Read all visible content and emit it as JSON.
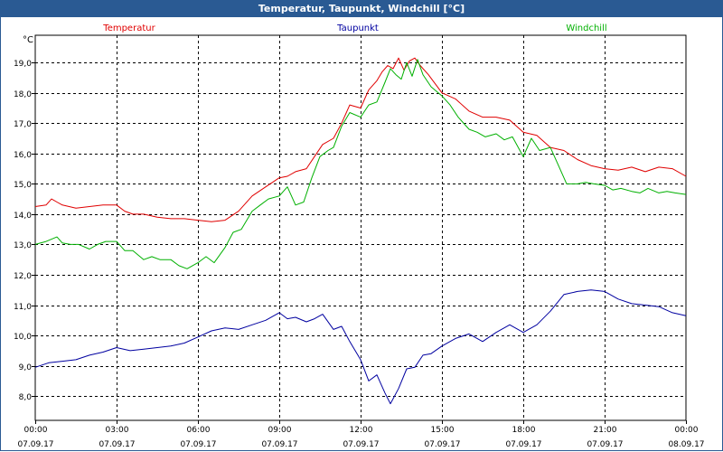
{
  "window": {
    "title": "Temperatur, Taupunkt, Windchill [°C]"
  },
  "chart_data": {
    "type": "line",
    "title": "Temperatur, Taupunkt, Windchill [°C]",
    "ylabel": "°C",
    "ylim": [
      7.2,
      19.9
    ],
    "xlim": [
      0,
      24
    ],
    "yticks": [
      8.0,
      9.0,
      10.0,
      11.0,
      12.0,
      13.0,
      14.0,
      15.0,
      16.0,
      17.0,
      18.0,
      19.0
    ],
    "ytick_labels": [
      "8,0",
      "9,0",
      "10,0",
      "11,0",
      "12,0",
      "13,0",
      "14,0",
      "15,0",
      "16,0",
      "17,0",
      "18,0",
      "19,0"
    ],
    "xticks": [
      0,
      3,
      6,
      9,
      12,
      15,
      18,
      21,
      24
    ],
    "xtick_times": [
      "00:00",
      "03:00",
      "06:00",
      "09:00",
      "12:00",
      "15:00",
      "18:00",
      "21:00",
      "00:00"
    ],
    "xtick_dates": [
      "07.09.17",
      "07.09.17",
      "07.09.17",
      "07.09.17",
      "07.09.17",
      "07.09.17",
      "07.09.17",
      "07.09.17",
      "08.09.17"
    ],
    "grid": true,
    "series": [
      {
        "name": "Temperatur",
        "color": "#e00000",
        "x": [
          0,
          0.4,
          0.6,
          0.8,
          1,
          1.5,
          2,
          2.5,
          3,
          3.3,
          3.6,
          4,
          4.5,
          5,
          5.5,
          6,
          6.5,
          7,
          7.5,
          8,
          8.5,
          9,
          9.3,
          9.6,
          10,
          10.3,
          10.6,
          11,
          11.3,
          11.6,
          12,
          12.3,
          12.6,
          12.8,
          13,
          13.2,
          13.4,
          13.6,
          13.8,
          14,
          14.2,
          14.5,
          15,
          15.5,
          16,
          16.5,
          17,
          17.5,
          18,
          18.5,
          19,
          19.5,
          20,
          20.5,
          21,
          21.5,
          22,
          22.5,
          23,
          23.5,
          24
        ],
        "values": [
          14.25,
          14.3,
          14.5,
          14.4,
          14.3,
          14.2,
          14.25,
          14.3,
          14.3,
          14.1,
          14.0,
          14.0,
          13.9,
          13.85,
          13.85,
          13.8,
          13.75,
          13.8,
          14.1,
          14.6,
          14.9,
          15.2,
          15.25,
          15.4,
          15.5,
          15.9,
          16.3,
          16.5,
          17.0,
          17.6,
          17.5,
          18.1,
          18.4,
          18.7,
          18.9,
          18.8,
          19.15,
          18.75,
          19.05,
          19.15,
          18.9,
          18.6,
          18.0,
          17.8,
          17.4,
          17.2,
          17.2,
          17.1,
          16.7,
          16.6,
          16.2,
          16.1,
          15.8,
          15.6,
          15.5,
          15.45,
          15.55,
          15.4,
          15.55,
          15.5,
          15.25
        ]
      },
      {
        "name": "Taupunkt",
        "color": "#0000a0",
        "x": [
          0,
          0.5,
          1,
          1.5,
          2,
          2.5,
          3,
          3.5,
          4,
          4.5,
          5,
          5.5,
          6,
          6.5,
          7,
          7.5,
          8,
          8.5,
          9,
          9.3,
          9.6,
          10,
          10.3,
          10.6,
          11,
          11.3,
          11.6,
          12,
          12.3,
          12.6,
          12.9,
          13.1,
          13.4,
          13.7,
          14,
          14.3,
          14.6,
          15,
          15.5,
          16,
          16.5,
          17,
          17.5,
          18,
          18.5,
          19,
          19.5,
          20,
          20.5,
          21,
          21.5,
          22,
          22.5,
          23,
          23.5,
          24
        ],
        "values": [
          8.95,
          9.1,
          9.15,
          9.2,
          9.35,
          9.45,
          9.6,
          9.5,
          9.55,
          9.6,
          9.65,
          9.75,
          9.95,
          10.15,
          10.25,
          10.2,
          10.35,
          10.5,
          10.75,
          10.55,
          10.6,
          10.45,
          10.55,
          10.7,
          10.2,
          10.3,
          9.8,
          9.2,
          8.5,
          8.7,
          8.1,
          7.75,
          8.25,
          8.9,
          8.95,
          9.35,
          9.4,
          9.65,
          9.9,
          10.05,
          9.8,
          10.1,
          10.35,
          10.1,
          10.35,
          10.8,
          11.35,
          11.45,
          11.5,
          11.45,
          11.2,
          11.05,
          11.0,
          10.95,
          10.75,
          10.65
        ]
      },
      {
        "name": "Windchill",
        "color": "#00b000",
        "x": [
          0,
          0.4,
          0.8,
          1,
          1.3,
          1.6,
          2,
          2.3,
          2.6,
          3,
          3.3,
          3.6,
          4,
          4.3,
          4.6,
          5,
          5.3,
          5.6,
          6,
          6.3,
          6.6,
          7,
          7.3,
          7.6,
          8,
          8.3,
          8.6,
          9,
          9.3,
          9.6,
          9.9,
          10.2,
          10.5,
          10.8,
          11,
          11.3,
          11.6,
          12,
          12.3,
          12.6,
          12.9,
          13.1,
          13.3,
          13.5,
          13.7,
          13.9,
          14.1,
          14.3,
          14.6,
          15,
          15.3,
          15.6,
          16,
          16.3,
          16.6,
          17,
          17.3,
          17.6,
          18,
          18.3,
          18.6,
          19,
          19.3,
          19.6,
          20,
          20.3,
          20.6,
          21,
          21.3,
          21.6,
          22,
          22.3,
          22.6,
          23,
          23.3,
          23.6,
          24
        ],
        "values": [
          13.0,
          13.1,
          13.25,
          13.05,
          13.0,
          13.0,
          12.85,
          13.0,
          13.1,
          13.1,
          12.8,
          12.8,
          12.5,
          12.6,
          12.5,
          12.5,
          12.3,
          12.2,
          12.4,
          12.6,
          12.4,
          12.9,
          13.4,
          13.5,
          14.1,
          14.3,
          14.5,
          14.6,
          14.9,
          14.3,
          14.4,
          15.2,
          15.9,
          16.1,
          16.2,
          16.9,
          17.35,
          17.2,
          17.6,
          17.7,
          18.35,
          18.8,
          18.6,
          18.45,
          19.0,
          18.55,
          19.1,
          18.6,
          18.2,
          17.9,
          17.6,
          17.2,
          16.8,
          16.7,
          16.55,
          16.65,
          16.45,
          16.55,
          15.9,
          16.5,
          16.1,
          16.2,
          15.6,
          15.0,
          15.0,
          15.05,
          15.0,
          14.95,
          14.8,
          14.85,
          14.75,
          14.7,
          14.85,
          14.7,
          14.75,
          14.7,
          14.65
        ]
      }
    ]
  }
}
